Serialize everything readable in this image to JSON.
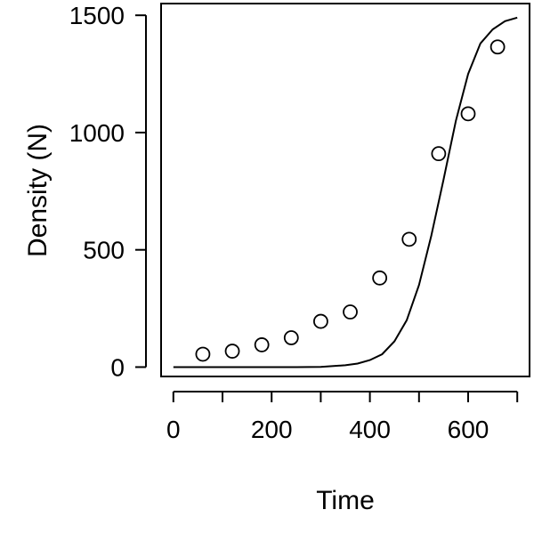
{
  "chart_data": {
    "type": "scatter",
    "xlabel": "Time",
    "ylabel": "Density (N)",
    "xlim": [
      -25,
      725
    ],
    "ylim": [
      -40,
      1550
    ],
    "xticks_labeled": [
      0,
      200,
      400,
      600
    ],
    "xticks_minor": [
      100,
      300,
      500,
      700
    ],
    "yticks": [
      0,
      500,
      1000,
      1500
    ],
    "grid": false,
    "legend": "none",
    "series": [
      {
        "kind": "points",
        "marker": "open-circle",
        "x": [
          60,
          120,
          180,
          240,
          300,
          360,
          420,
          480,
          540,
          600,
          660
        ],
        "y": [
          55,
          68,
          95,
          125,
          195,
          235,
          380,
          545,
          910,
          1080,
          1365
        ]
      },
      {
        "kind": "line",
        "x": [
          0,
          50,
          100,
          150,
          200,
          250,
          300,
          350,
          375,
          400,
          425,
          450,
          475,
          500,
          525,
          550,
          575,
          600,
          625,
          650,
          675,
          700
        ],
        "y": [
          0,
          0,
          0,
          0,
          0,
          0,
          1,
          8,
          15,
          30,
          55,
          110,
          200,
          350,
          560,
          800,
          1050,
          1250,
          1380,
          1440,
          1475,
          1490
        ]
      }
    ]
  }
}
